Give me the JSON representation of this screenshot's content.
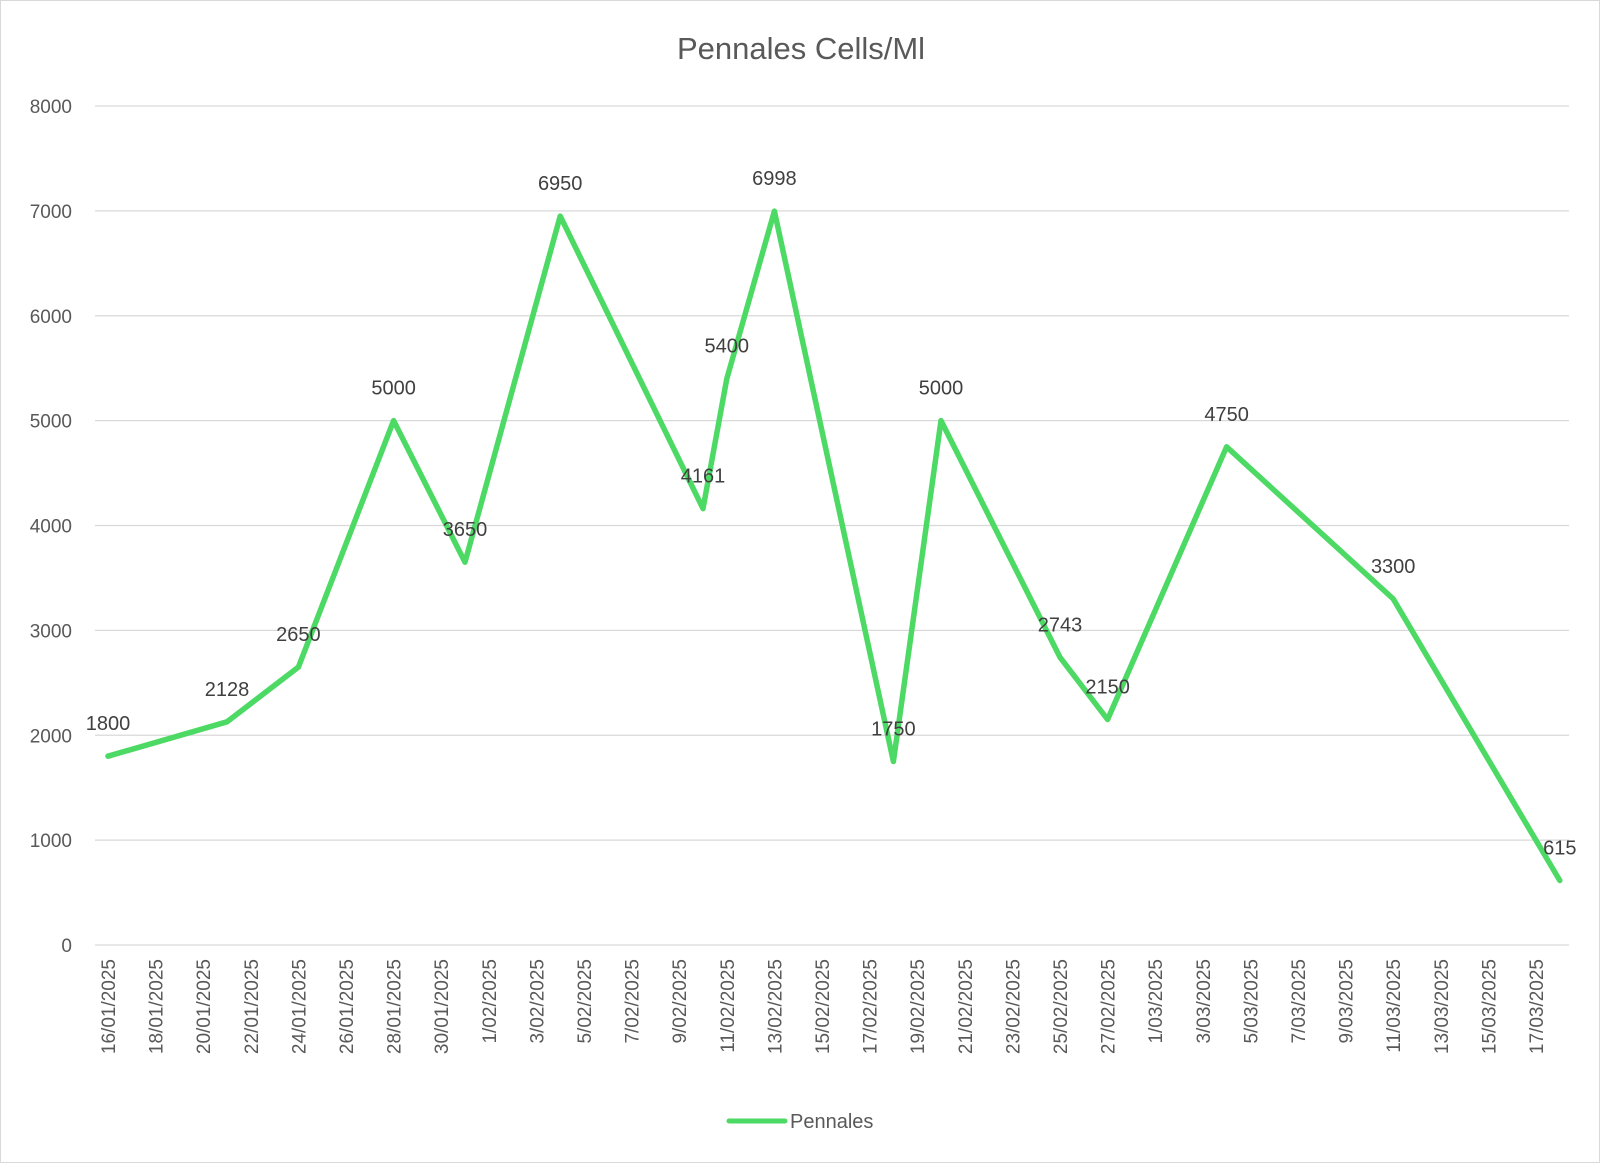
{
  "chart_data": {
    "type": "line",
    "title": "Pennales Cells/Ml",
    "xlabel": "",
    "ylabel": "",
    "ylim": [
      0,
      8000
    ],
    "yticks": [
      0,
      1000,
      2000,
      3000,
      4000,
      5000,
      6000,
      7000,
      8000
    ],
    "x_axis_type": "date",
    "xlim": [
      "2025-01-16",
      "2025-03-19"
    ],
    "x_tick_labels": [
      "16/01/2025",
      "18/01/2025",
      "20/01/2025",
      "22/01/2025",
      "24/01/2025",
      "26/01/2025",
      "28/01/2025",
      "30/01/2025",
      "1/02/2025",
      "3/02/2025",
      "5/02/2025",
      "7/02/2025",
      "9/02/2025",
      "11/02/2025",
      "13/02/2025",
      "15/02/2025",
      "17/02/2025",
      "19/02/2025",
      "21/02/2025",
      "23/02/2025",
      "25/02/2025",
      "27/02/2025",
      "1/03/2025",
      "3/03/2025",
      "5/03/2025",
      "7/03/2025",
      "9/03/2025",
      "11/03/2025",
      "13/03/2025",
      "15/03/2025",
      "17/03/2025"
    ],
    "x_tick_dates": [
      "2025-01-16",
      "2025-01-18",
      "2025-01-20",
      "2025-01-22",
      "2025-01-24",
      "2025-01-26",
      "2025-01-28",
      "2025-01-30",
      "2025-02-01",
      "2025-02-03",
      "2025-02-05",
      "2025-02-07",
      "2025-02-09",
      "2025-02-11",
      "2025-02-13",
      "2025-02-15",
      "2025-02-17",
      "2025-02-19",
      "2025-02-21",
      "2025-02-23",
      "2025-02-25",
      "2025-02-27",
      "2025-03-01",
      "2025-03-03",
      "2025-03-05",
      "2025-03-07",
      "2025-03-09",
      "2025-03-11",
      "2025-03-13",
      "2025-03-15",
      "2025-03-17"
    ],
    "grid": true,
    "legend_position": "bottom",
    "series": [
      {
        "name": "Pennales",
        "color": "#4cd964",
        "points": [
          {
            "x": "2025-01-16",
            "y": 1800
          },
          {
            "x": "2025-01-21",
            "y": 2128
          },
          {
            "x": "2025-01-24",
            "y": 2650
          },
          {
            "x": "2025-01-28",
            "y": 5000
          },
          {
            "x": "2025-01-31",
            "y": 3650
          },
          {
            "x": "2025-02-04",
            "y": 6950
          },
          {
            "x": "2025-02-10",
            "y": 4161
          },
          {
            "x": "2025-02-11",
            "y": 5400
          },
          {
            "x": "2025-02-13",
            "y": 6998
          },
          {
            "x": "2025-02-18",
            "y": 1750
          },
          {
            "x": "2025-02-20",
            "y": 5000
          },
          {
            "x": "2025-02-25",
            "y": 2743
          },
          {
            "x": "2025-02-27",
            "y": 2150
          },
          {
            "x": "2025-03-04",
            "y": 4750
          },
          {
            "x": "2025-03-11",
            "y": 3300
          },
          {
            "x": "2025-03-18",
            "y": 615
          }
        ]
      }
    ]
  }
}
